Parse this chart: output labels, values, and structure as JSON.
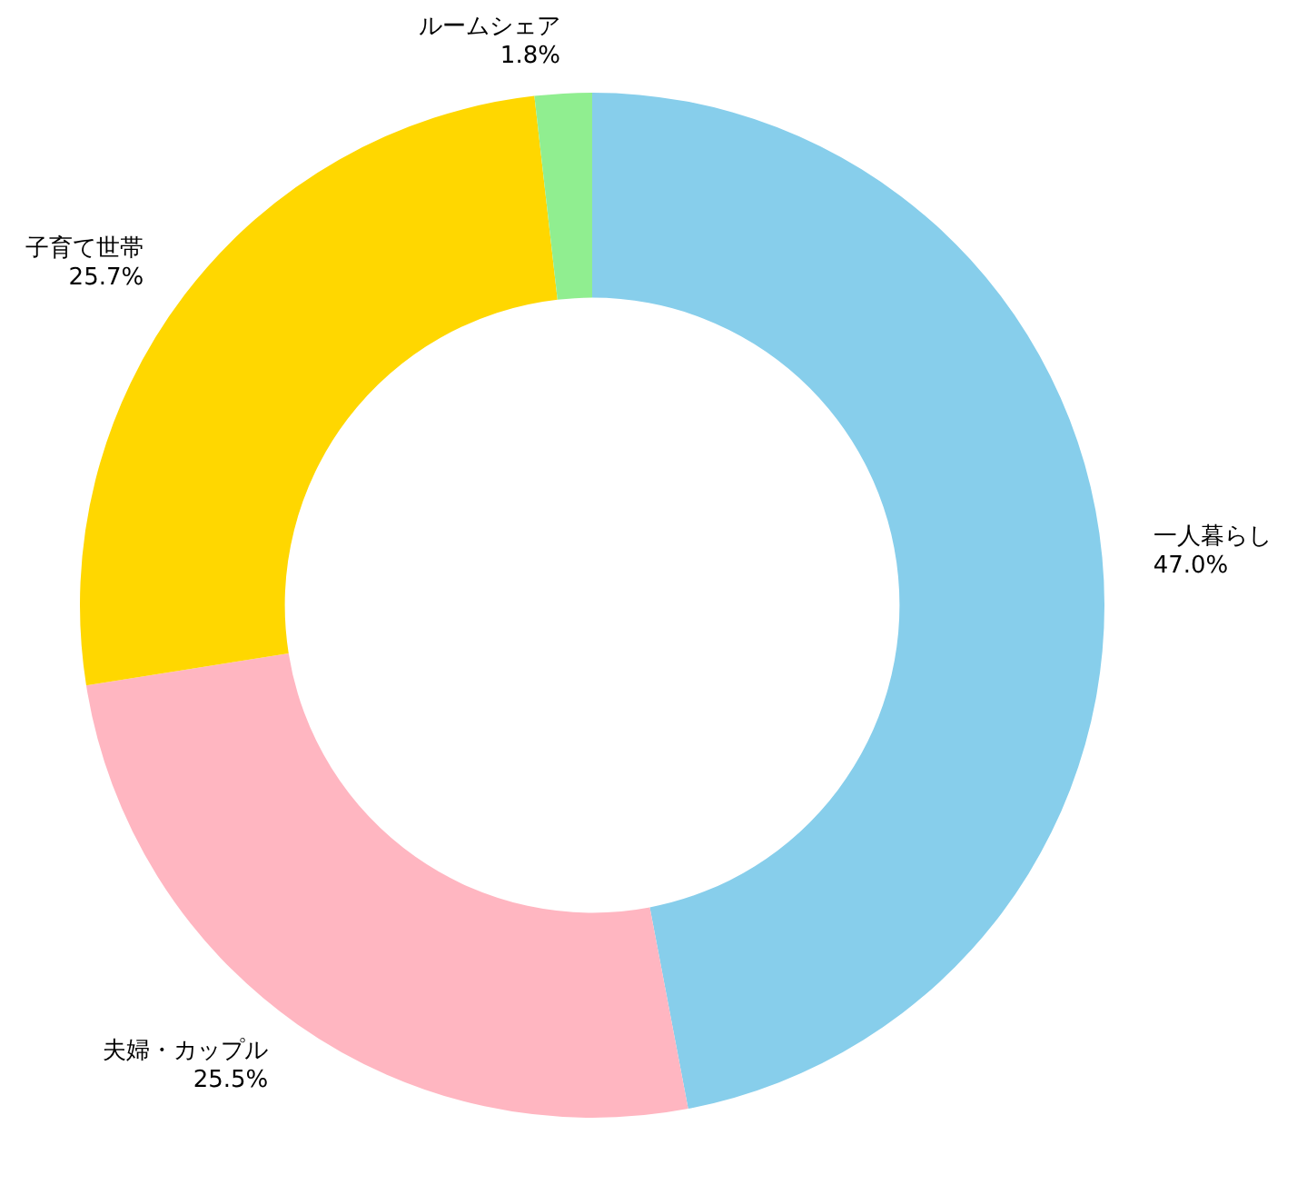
{
  "chart_data": {
    "type": "donut",
    "categories": [
      "一人暮らし",
      "夫婦・カップル",
      "子育て世帯",
      "ルームシェア"
    ],
    "values": [
      47.0,
      25.5,
      25.7,
      1.8
    ],
    "colors": [
      "#87ceeb",
      "#ffb6c1",
      "#ffd700",
      "#90ee90"
    ],
    "value_labels": [
      "47.0%",
      "25.5%",
      "25.7%",
      "1.8%"
    ],
    "legend": false
  }
}
